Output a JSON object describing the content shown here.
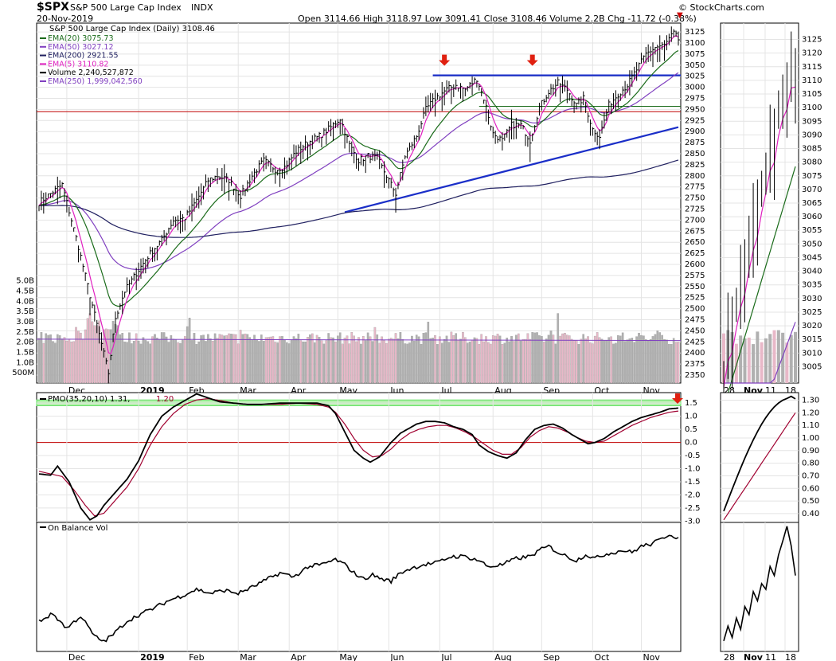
{
  "header": {
    "symbol": "$SPX",
    "name": "S&P 500 Large Cap Index",
    "exchange": "INDX",
    "date": "20-Nov-2019",
    "source": "© StockCharts.com",
    "ohlc": "Open 3114.66  High 3118.97  Low 3091.41  Close 3108.46  Volume 2.2B  Chg -11.72 (-0.38%)"
  },
  "colors": {
    "price": "#000000",
    "ema5": "#e020c0",
    "ema20": "#1a6b1a",
    "ema50": "#8040c0",
    "ema200": "#202060",
    "trend": "#1a2ec8",
    "signal": "#c00000",
    "up_vol": "#b0b0b0",
    "down_vol": "#e8b8c8",
    "arrow": "#e02010",
    "pmo_band": "#60e060",
    "pmo_signal": "#a00030"
  },
  "icons": [
    "down-arrow-icon",
    "down-triangle-icon"
  ],
  "chart_data": [
    {
      "id": "price",
      "type": "line",
      "title": "S&P 500 Large Cap Index (Daily) 3108.46",
      "legend": [
        {
          "label": "EMA(20) 3075.73",
          "color": "#1a6b1a"
        },
        {
          "label": "EMA(50) 3027.12",
          "color": "#8040c0"
        },
        {
          "label": "EMA(200) 2921.55",
          "color": "#202060"
        },
        {
          "label": "EMA(5) 3110.82",
          "color": "#e020c0"
        },
        {
          "label": "Volume 2,240,527,872",
          "color": "#000000"
        },
        {
          "label": "EMA(250) 1,999,042,560",
          "color": "#8040c0"
        }
      ],
      "y_ticks": [
        3125,
        3100,
        3075,
        3050,
        3025,
        3000,
        2975,
        2950,
        2925,
        2900,
        2875,
        2850,
        2825,
        2800,
        2775,
        2750,
        2725,
        2700,
        2675,
        2650,
        2625,
        2600,
        2575,
        2550,
        2525,
        2500,
        2475,
        2450,
        2425,
        2400,
        2375,
        2350
      ],
      "ylim": [
        2332,
        3145
      ],
      "volume_ticks": [
        "5.0B",
        "4.5B",
        "4.0B",
        "3.5B",
        "3.0B",
        "2.5B",
        "2.0B",
        "1.5B",
        "1.0B",
        "500M"
      ],
      "x_labels": [
        "Dec",
        "2019",
        "Feb",
        "Mar",
        "Apr",
        "May",
        "Jun",
        "Jul",
        "Aug",
        "Sep",
        "Oct",
        "Nov"
      ],
      "x_label_index": [
        12,
        43,
        64,
        86,
        108,
        129,
        151,
        173,
        196,
        217,
        239,
        260
      ],
      "n": 277,
      "close_anchors": [
        [
          0,
          2740
        ],
        [
          5,
          2760
        ],
        [
          10,
          2780
        ],
        [
          17,
          2640
        ],
        [
          22,
          2530
        ],
        [
          27,
          2420
        ],
        [
          30,
          2355
        ],
        [
          33,
          2480
        ],
        [
          37,
          2540
        ],
        [
          42,
          2580
        ],
        [
          48,
          2625
        ],
        [
          53,
          2655
        ],
        [
          58,
          2700
        ],
        [
          63,
          2705
        ],
        [
          68,
          2745
        ],
        [
          73,
          2790
        ],
        [
          77,
          2800
        ],
        [
          82,
          2790
        ],
        [
          87,
          2755
        ],
        [
          92,
          2800
        ],
        [
          97,
          2835
        ],
        [
          102,
          2815
        ],
        [
          106,
          2820
        ],
        [
          111,
          2855
        ],
        [
          116,
          2875
        ],
        [
          121,
          2890
        ],
        [
          126,
          2910
        ],
        [
          130,
          2930
        ],
        [
          134,
          2870
        ],
        [
          138,
          2835
        ],
        [
          142,
          2845
        ],
        [
          146,
          2840
        ],
        [
          150,
          2800
        ],
        [
          154,
          2760
        ],
        [
          158,
          2845
        ],
        [
          163,
          2890
        ],
        [
          167,
          2950
        ],
        [
          171,
          2975
        ],
        [
          176,
          2995
        ],
        [
          180,
          3005
        ],
        [
          184,
          2995
        ],
        [
          189,
          3020
        ],
        [
          192,
          2975
        ],
        [
          196,
          2895
        ],
        [
          200,
          2880
        ],
        [
          204,
          2915
        ],
        [
          208,
          2915
        ],
        [
          212,
          2880
        ],
        [
          216,
          2955
        ],
        [
          220,
          2990
        ],
        [
          224,
          3010
        ],
        [
          228,
          2995
        ],
        [
          232,
          2960
        ],
        [
          235,
          2975
        ],
        [
          239,
          2905
        ],
        [
          242,
          2890
        ],
        [
          246,
          2960
        ],
        [
          250,
          2985
        ],
        [
          254,
          3005
        ],
        [
          258,
          3040
        ],
        [
          262,
          3075
        ],
        [
          266,
          3090
        ],
        [
          270,
          3095
        ],
        [
          274,
          3122
        ],
        [
          276,
          3108
        ]
      ],
      "ema5": 3110.82,
      "ema20": 3075.73,
      "ema50": 3027.12,
      "ema200": 2921.55,
      "resistance": 3027,
      "horizontal": 2945,
      "support_line": [
        [
          132,
          2718
        ],
        [
          276,
          2910
        ]
      ],
      "signal_line": 2957,
      "arrows_at": [
        175,
        213
      ]
    },
    {
      "id": "price_zoom",
      "type": "line",
      "y_ticks": [
        3125,
        3120,
        3115,
        3110,
        3105,
        3100,
        3095,
        3090,
        3085,
        3080,
        3075,
        3070,
        3065,
        3060,
        3055,
        3050,
        3045,
        3040,
        3035,
        3030,
        3025,
        3020,
        3015,
        3010,
        3005
      ],
      "ylim": [
        2999,
        3131
      ],
      "x_labels": [
        "28",
        "Nov",
        "11",
        "18"
      ]
    },
    {
      "id": "pmo",
      "type": "line",
      "title": "PMO(35,20,10) 1.31, 1.20",
      "pmo_label": "PMO(35,20,10) 1.31,",
      "signal_label": "1.20",
      "pmo": 1.31,
      "signal": 1.2,
      "y_ticks": [
        "1.5",
        "1.0",
        "0.5",
        "0.0",
        "-0.5",
        "-1.0",
        "-1.5",
        "-2.0",
        "-2.5",
        "-3.0"
      ],
      "ylim": [
        -3.05,
        1.9
      ],
      "band": [
        1.4,
        1.62
      ],
      "pmo_anchors": [
        [
          0,
          -1.2
        ],
        [
          5,
          -1.25
        ],
        [
          8,
          -0.9
        ],
        [
          13,
          -1.5
        ],
        [
          18,
          -2.5
        ],
        [
          22,
          -2.95
        ],
        [
          25,
          -2.8
        ],
        [
          28,
          -2.4
        ],
        [
          33,
          -1.9
        ],
        [
          38,
          -1.4
        ],
        [
          43,
          -0.7
        ],
        [
          48,
          0.3
        ],
        [
          53,
          1.0
        ],
        [
          58,
          1.35
        ],
        [
          63,
          1.6
        ],
        [
          68,
          1.85
        ],
        [
          73,
          1.7
        ],
        [
          78,
          1.55
        ],
        [
          84,
          1.5
        ],
        [
          90,
          1.45
        ],
        [
          96,
          1.45
        ],
        [
          104,
          1.5
        ],
        [
          112,
          1.5
        ],
        [
          120,
          1.5
        ],
        [
          125,
          1.4
        ],
        [
          128,
          1.1
        ],
        [
          132,
          0.4
        ],
        [
          136,
          -0.3
        ],
        [
          140,
          -0.6
        ],
        [
          143,
          -0.75
        ],
        [
          147,
          -0.55
        ],
        [
          152,
          0.0
        ],
        [
          156,
          0.35
        ],
        [
          160,
          0.55
        ],
        [
          163,
          0.7
        ],
        [
          167,
          0.8
        ],
        [
          171,
          0.8
        ],
        [
          175,
          0.75
        ],
        [
          179,
          0.6
        ],
        [
          183,
          0.5
        ],
        [
          187,
          0.3
        ],
        [
          190,
          -0.1
        ],
        [
          194,
          -0.35
        ],
        [
          198,
          -0.5
        ],
        [
          202,
          -0.6
        ],
        [
          206,
          -0.4
        ],
        [
          210,
          0.1
        ],
        [
          214,
          0.5
        ],
        [
          218,
          0.65
        ],
        [
          222,
          0.7
        ],
        [
          226,
          0.55
        ],
        [
          230,
          0.3
        ],
        [
          234,
          0.1
        ],
        [
          237,
          -0.05
        ],
        [
          240,
          0.0
        ],
        [
          244,
          0.15
        ],
        [
          248,
          0.4
        ],
        [
          252,
          0.6
        ],
        [
          256,
          0.8
        ],
        [
          260,
          0.95
        ],
        [
          264,
          1.05
        ],
        [
          268,
          1.15
        ],
        [
          272,
          1.28
        ],
        [
          276,
          1.31
        ]
      ],
      "sig_anchors": [
        [
          0,
          -1.1
        ],
        [
          5,
          -1.2
        ],
        [
          10,
          -1.3
        ],
        [
          15,
          -1.8
        ],
        [
          20,
          -2.4
        ],
        [
          24,
          -2.8
        ],
        [
          28,
          -2.7
        ],
        [
          33,
          -2.2
        ],
        [
          38,
          -1.7
        ],
        [
          43,
          -1.0
        ],
        [
          48,
          -0.1
        ],
        [
          53,
          0.6
        ],
        [
          58,
          1.1
        ],
        [
          63,
          1.45
        ],
        [
          68,
          1.62
        ],
        [
          73,
          1.67
        ],
        [
          78,
          1.6
        ],
        [
          84,
          1.5
        ],
        [
          90,
          1.45
        ],
        [
          96,
          1.45
        ],
        [
          104,
          1.45
        ],
        [
          112,
          1.5
        ],
        [
          120,
          1.45
        ],
        [
          125,
          1.35
        ],
        [
          128,
          1.15
        ],
        [
          132,
          0.7
        ],
        [
          136,
          0.15
        ],
        [
          140,
          -0.3
        ],
        [
          144,
          -0.55
        ],
        [
          148,
          -0.5
        ],
        [
          152,
          -0.25
        ],
        [
          156,
          0.1
        ],
        [
          160,
          0.35
        ],
        [
          164,
          0.5
        ],
        [
          168,
          0.6
        ],
        [
          172,
          0.65
        ],
        [
          176,
          0.65
        ],
        [
          180,
          0.55
        ],
        [
          184,
          0.4
        ],
        [
          188,
          0.2
        ],
        [
          192,
          -0.05
        ],
        [
          196,
          -0.3
        ],
        [
          200,
          -0.45
        ],
        [
          204,
          -0.45
        ],
        [
          208,
          -0.2
        ],
        [
          212,
          0.2
        ],
        [
          216,
          0.45
        ],
        [
          220,
          0.6
        ],
        [
          224,
          0.55
        ],
        [
          228,
          0.4
        ],
        [
          232,
          0.2
        ],
        [
          236,
          0.05
        ],
        [
          240,
          0.0
        ],
        [
          244,
          0.05
        ],
        [
          248,
          0.25
        ],
        [
          252,
          0.45
        ],
        [
          256,
          0.65
        ],
        [
          260,
          0.8
        ],
        [
          264,
          0.95
        ],
        [
          268,
          1.05
        ],
        [
          272,
          1.15
        ],
        [
          276,
          1.2
        ]
      ]
    },
    {
      "id": "pmo_zoom",
      "type": "line",
      "y_ticks": [
        "1.30",
        "1.20",
        "1.10",
        "1.00",
        "0.90",
        "0.80",
        "0.70",
        "0.60",
        "0.50",
        "0.40"
      ],
      "ylim": [
        0.33,
        1.36
      ]
    },
    {
      "id": "obv",
      "type": "line",
      "title": "On Balance Vol",
      "obv_anchors": [
        [
          0,
          0.25
        ],
        [
          6,
          0.32
        ],
        [
          12,
          0.18
        ],
        [
          18,
          0.3
        ],
        [
          24,
          0.1
        ],
        [
          28,
          0.05
        ],
        [
          32,
          0.12
        ],
        [
          38,
          0.25
        ],
        [
          44,
          0.32
        ],
        [
          50,
          0.38
        ],
        [
          56,
          0.45
        ],
        [
          62,
          0.5
        ],
        [
          68,
          0.56
        ],
        [
          74,
          0.52
        ],
        [
          80,
          0.55
        ],
        [
          86,
          0.52
        ],
        [
          92,
          0.58
        ],
        [
          98,
          0.65
        ],
        [
          104,
          0.72
        ],
        [
          110,
          0.68
        ],
        [
          116,
          0.78
        ],
        [
          122,
          0.8
        ],
        [
          128,
          0.85
        ],
        [
          132,
          0.8
        ],
        [
          136,
          0.72
        ],
        [
          140,
          0.66
        ],
        [
          144,
          0.7
        ],
        [
          148,
          0.66
        ],
        [
          152,
          0.64
        ],
        [
          156,
          0.72
        ],
        [
          160,
          0.76
        ],
        [
          166,
          0.8
        ],
        [
          172,
          0.82
        ],
        [
          178,
          0.88
        ],
        [
          184,
          0.88
        ],
        [
          190,
          0.84
        ],
        [
          194,
          0.78
        ],
        [
          200,
          0.8
        ],
        [
          206,
          0.86
        ],
        [
          212,
          0.88
        ],
        [
          216,
          0.94
        ],
        [
          220,
          0.98
        ],
        [
          224,
          0.92
        ],
        [
          228,
          0.88
        ],
        [
          232,
          0.84
        ],
        [
          236,
          0.9
        ],
        [
          240,
          0.86
        ],
        [
          244,
          0.9
        ],
        [
          248,
          0.92
        ],
        [
          252,
          0.94
        ],
        [
          256,
          0.92
        ],
        [
          260,
          0.98
        ],
        [
          264,
          1.0
        ],
        [
          268,
          1.04
        ],
        [
          272,
          1.1
        ],
        [
          276,
          1.06
        ]
      ]
    }
  ]
}
